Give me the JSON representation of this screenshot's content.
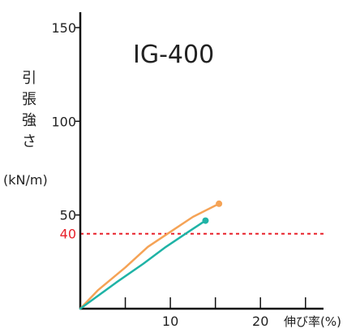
{
  "chart_data": {
    "type": "line",
    "title": "IG-400",
    "ylabel_chars": [
      "引",
      "張",
      "強",
      "さ"
    ],
    "ylabel_unit": "(kN/m)",
    "xlabel": "伸び率(%)",
    "xlim": [
      0,
      27
    ],
    "ylim": [
      0,
      160
    ],
    "x_ticks": [
      5,
      10,
      15,
      20,
      25
    ],
    "x_tick_labels": [
      {
        "x": 10,
        "label": "10"
      },
      {
        "x": 20,
        "label": "20"
      }
    ],
    "y_ticks": [
      {
        "y": 50,
        "label": "50"
      },
      {
        "y": 100,
        "label": "100"
      },
      {
        "y": 150,
        "label": "150"
      }
    ],
    "threshold": {
      "y": 40,
      "label": "40",
      "color": "#e8212a"
    },
    "series": [
      {
        "color": "#f5a356",
        "end_marker": true,
        "points": [
          [
            0,
            0
          ],
          [
            2,
            10
          ],
          [
            5,
            22
          ],
          [
            7.5,
            33
          ],
          [
            10,
            41
          ],
          [
            12.5,
            49
          ],
          [
            15.4,
            56
          ]
        ]
      },
      {
        "color": "#1fb3a6",
        "end_marker": true,
        "points": [
          [
            0,
            0
          ],
          [
            2,
            7
          ],
          [
            4,
            14
          ],
          [
            7,
            24
          ],
          [
            9.5,
            33
          ],
          [
            12,
            41
          ],
          [
            13.9,
            47
          ]
        ]
      }
    ]
  }
}
